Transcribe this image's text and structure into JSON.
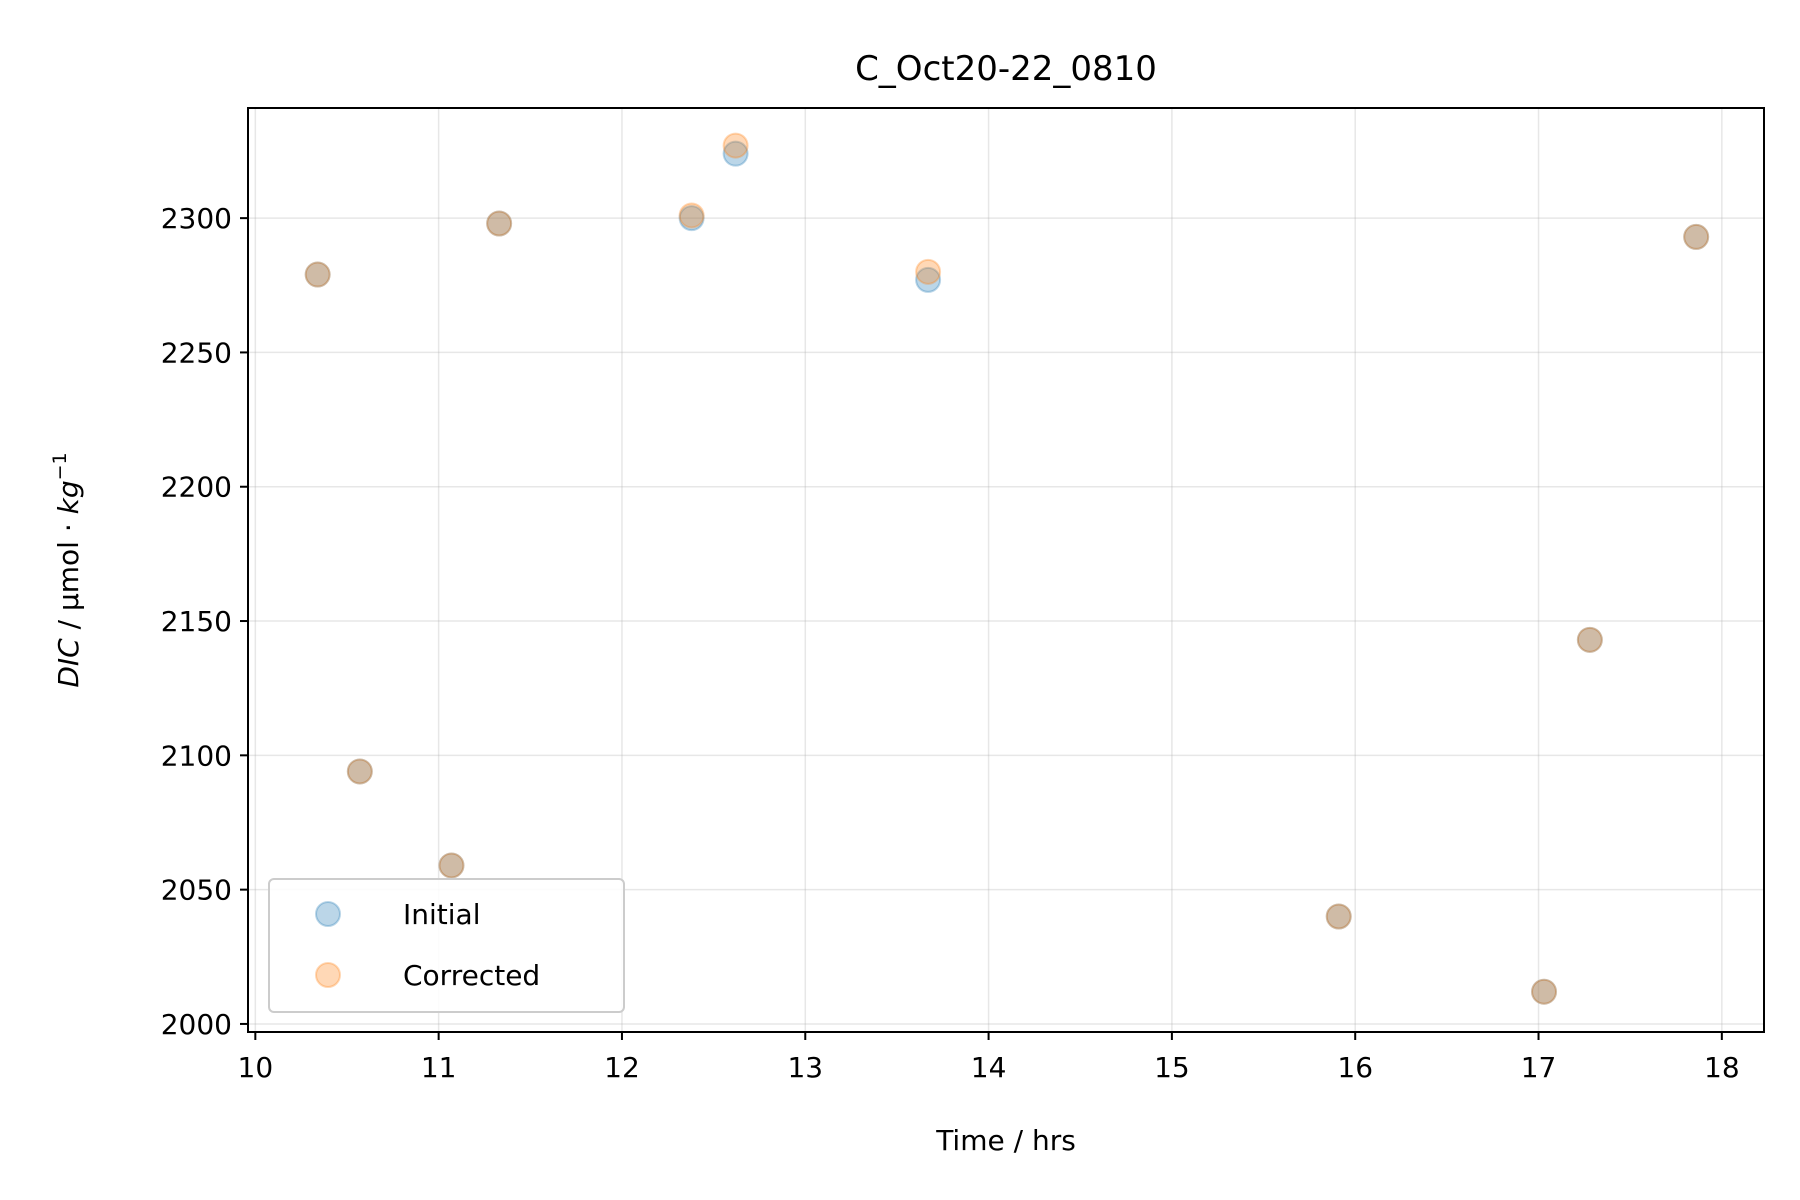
{
  "chart_data": {
    "type": "scatter",
    "title": "C_Oct20-22_0810",
    "xlabel": "Time / hrs",
    "ylabel_prefix": "DIC",
    "ylabel_units": " / μmol · ",
    "ylabel_kg": "kg",
    "ylabel_exp": "−1",
    "xlim": [
      9.96,
      18.23
    ],
    "ylim": [
      1997,
      2341
    ],
    "xticks": [
      10,
      11,
      12,
      13,
      14,
      15,
      16,
      17,
      18
    ],
    "yticks": [
      2000,
      2050,
      2100,
      2150,
      2200,
      2250,
      2300
    ],
    "grid": true,
    "legend_position": "lower-left",
    "series": [
      {
        "name": "Initial",
        "color": "#1f77b4",
        "points": [
          [
            10.34,
            2279
          ],
          [
            10.57,
            2094
          ],
          [
            11.07,
            2059
          ],
          [
            11.33,
            2298
          ],
          [
            12.38,
            2300
          ],
          [
            12.62,
            2324
          ],
          [
            13.67,
            2277
          ],
          [
            15.91,
            2040
          ],
          [
            17.03,
            2012
          ],
          [
            17.28,
            2143
          ],
          [
            17.86,
            2293
          ]
        ]
      },
      {
        "name": "Corrected",
        "color": "#ff7f0e",
        "points": [
          [
            10.34,
            2279
          ],
          [
            10.57,
            2094
          ],
          [
            11.07,
            2059
          ],
          [
            11.33,
            2298
          ],
          [
            12.38,
            2301
          ],
          [
            12.62,
            2327
          ],
          [
            13.67,
            2280
          ],
          [
            15.91,
            2040
          ],
          [
            17.03,
            2012
          ],
          [
            17.28,
            2143
          ],
          [
            17.86,
            2293
          ]
        ]
      }
    ]
  }
}
